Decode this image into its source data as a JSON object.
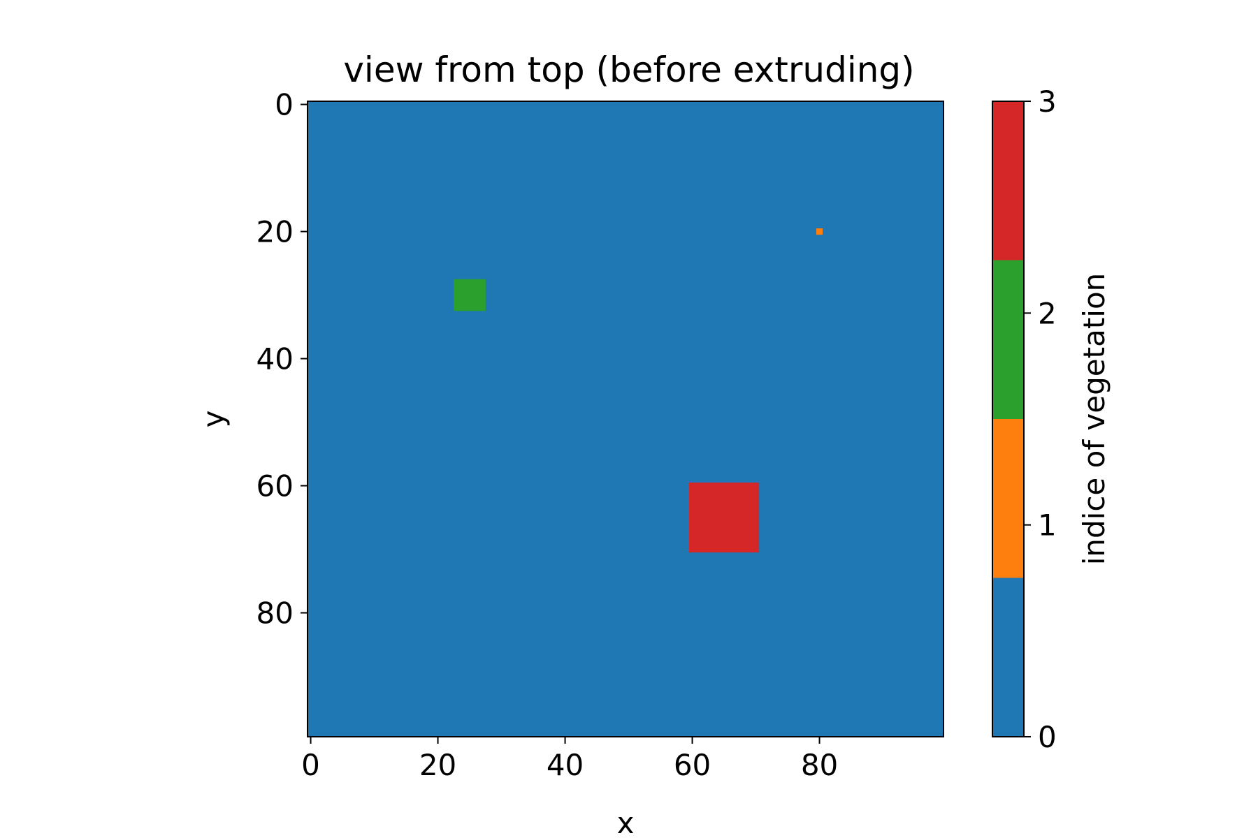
{
  "chart_data": {
    "type": "heatmap",
    "title": "view from top (before extruding)",
    "xlabel": "x",
    "ylabel": "y",
    "xlim": [
      -0.5,
      99.5
    ],
    "ylim": [
      99.5,
      -0.5
    ],
    "x_ticks": [
      0,
      20,
      40,
      60,
      80
    ],
    "y_ticks": [
      0,
      20,
      40,
      60,
      80
    ],
    "grid": false,
    "background_value": 0,
    "regions": [
      {
        "value": 1,
        "x": [
          80,
          80
        ],
        "y": [
          20,
          20
        ]
      },
      {
        "value": 2,
        "x": [
          23,
          27
        ],
        "y": [
          28,
          32
        ]
      },
      {
        "value": 3,
        "x": [
          60,
          70
        ],
        "y": [
          60,
          70
        ]
      }
    ],
    "colorbar": {
      "label": "indice of vegetation",
      "ticks": [
        0,
        1,
        2,
        3
      ],
      "range": [
        0,
        3
      ],
      "levels": [
        {
          "value": 0,
          "color": "#1f77b4"
        },
        {
          "value": 1,
          "color": "#ff7f0e"
        },
        {
          "value": 2,
          "color": "#2ca02c"
        },
        {
          "value": 3,
          "color": "#d62728"
        }
      ]
    }
  }
}
